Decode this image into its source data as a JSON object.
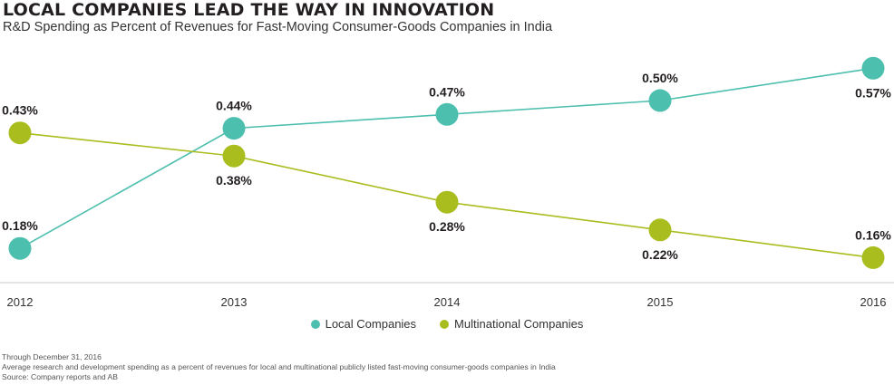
{
  "header": {
    "title": "LOCAL COMPANIES LEAD THE WAY IN INNOVATION",
    "subtitle": "R&D Spending as Percent of Revenues for Fast-Moving Consumer-Goods Companies in India"
  },
  "chart_data": {
    "type": "line",
    "title": "LOCAL COMPANIES LEAD THE WAY IN INNOVATION",
    "subtitle": "R&D Spending as Percent of Revenues for Fast-Moving Consumer-Goods Companies in India",
    "x": [
      "2012",
      "2013",
      "2014",
      "2015",
      "2016"
    ],
    "ylim": [
      0.1,
      0.6
    ],
    "grid": false,
    "legend_position": "bottom-center",
    "series": [
      {
        "name": "Local Companies",
        "color": "#4dbfae",
        "values": [
          0.18,
          0.44,
          0.47,
          0.5,
          0.57
        ],
        "labels": [
          "0.18%",
          "0.44%",
          "0.47%",
          "0.50%",
          "0.57%"
        ],
        "label_side": [
          "above",
          "above",
          "above",
          "above",
          "below"
        ]
      },
      {
        "name": "Multinational Companies",
        "color": "#aabd1f",
        "values": [
          0.43,
          0.38,
          0.28,
          0.22,
          0.16
        ],
        "labels": [
          "0.43%",
          "0.38%",
          "0.28%",
          "0.22%",
          "0.16%"
        ],
        "label_side": [
          "above",
          "below",
          "below",
          "below",
          "above"
        ]
      }
    ]
  },
  "notes": {
    "line1": "Through December 31, 2016",
    "line2": "Average research and development spending as a percent of revenues for local and multinational publicly listed fast-moving consumer-goods companies in India",
    "line3": "Source: Company reports and AB"
  }
}
